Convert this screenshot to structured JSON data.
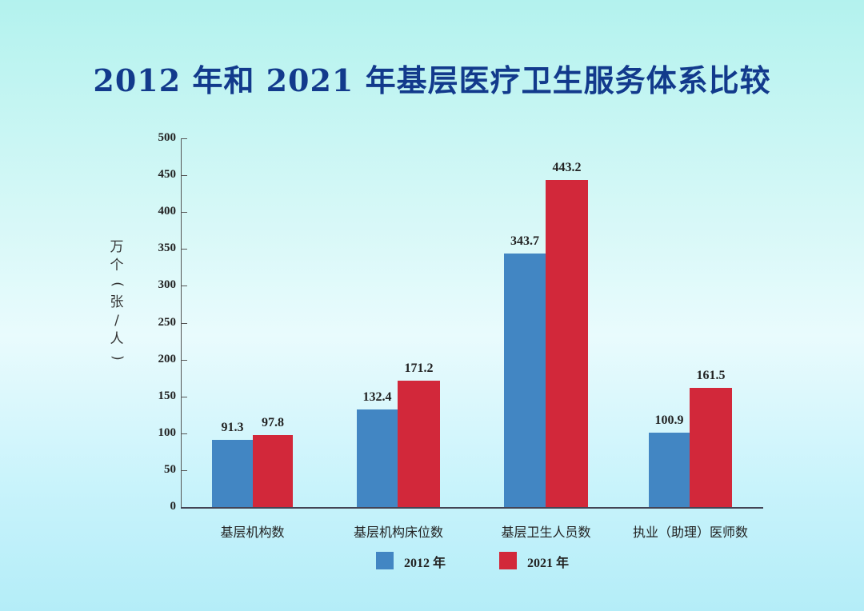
{
  "title": "2012 年和 2021 年基层医疗卫生服务体系比较",
  "colors": {
    "series_2012": "#4286c3",
    "series_2021": "#d2283a",
    "title": "#123a8c"
  },
  "chart_data": {
    "type": "bar",
    "title": "2012 年和 2021 年基层医疗卫生服务体系比较",
    "xlabel": "",
    "ylabel": "万个（张/人）",
    "ylim": [
      0,
      500
    ],
    "yticks": [
      0,
      50,
      100,
      150,
      200,
      250,
      300,
      350,
      400,
      450,
      500
    ],
    "categories": [
      "基层机构数",
      "基层机构床位数",
      "基层卫生人员数",
      "执业（助理）医师数"
    ],
    "series": [
      {
        "name": "2012 年",
        "color": "#4286c3",
        "values": [
          91.3,
          132.4,
          343.7,
          100.9
        ]
      },
      {
        "name": "2021 年",
        "color": "#d2283a",
        "values": [
          97.8,
          171.2,
          443.2,
          161.5
        ]
      }
    ],
    "grid": false,
    "legend_position": "bottom"
  },
  "labels": {
    "ylabel": "万个（张/人）",
    "ticks": [
      "0",
      "50",
      "100",
      "150",
      "200",
      "250",
      "300",
      "350",
      "400",
      "450",
      "500"
    ],
    "categories": [
      "基层机构数",
      "基层机构床位数",
      "基层卫生人员数",
      "执业（助理）医师数"
    ],
    "values_2012": [
      "91.3",
      "132.4",
      "343.7",
      "100.9"
    ],
    "values_2021": [
      "97.8",
      "171.2",
      "443.2",
      "161.5"
    ],
    "legend": [
      "2012 年",
      "2021 年"
    ]
  }
}
